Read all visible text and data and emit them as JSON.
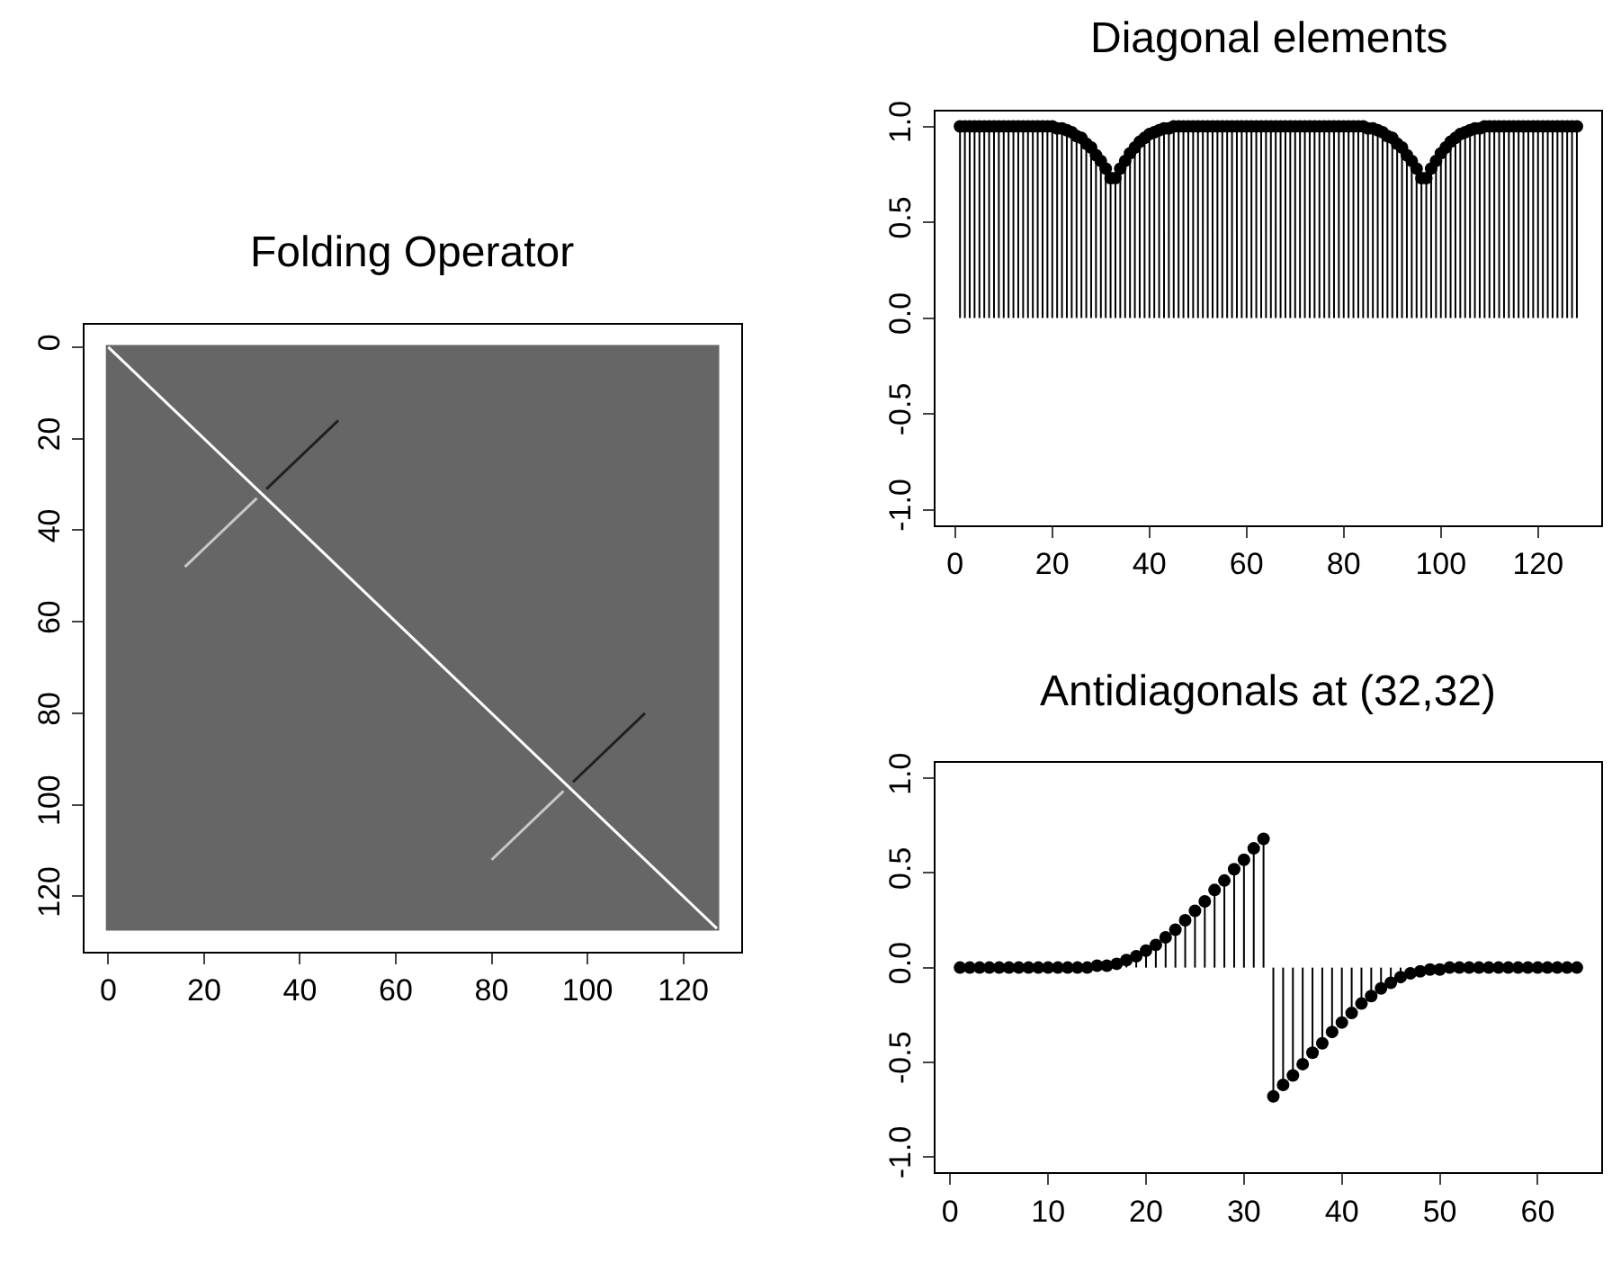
{
  "chart_data": [
    {
      "type": "line",
      "title": "Folding Operator",
      "marker": "none",
      "line_style": "solid",
      "grid": false,
      "xlim": [
        -5,
        132
      ],
      "ylim": [
        132,
        -5
      ],
      "xticks": [
        0,
        20,
        40,
        60,
        80,
        100,
        120
      ],
      "yticks": [
        0,
        20,
        40,
        60,
        80,
        100,
        120
      ],
      "bands": [
        {
          "axis": "x",
          "from": -0.5,
          "to": 127.5,
          "color": "#666666"
        }
      ],
      "series": [
        {
          "color": "#ffffff",
          "x": [
            0,
            127
          ],
          "values": [
            0,
            127
          ]
        },
        {
          "color": "#c8c8c8",
          "x": [
            16,
            31
          ],
          "values": [
            48,
            33
          ]
        },
        {
          "color": "#202020",
          "x": [
            33,
            48
          ],
          "values": [
            31,
            16
          ]
        },
        {
          "color": "#c8c8c8",
          "x": [
            80,
            95
          ],
          "values": [
            112,
            97
          ]
        },
        {
          "color": "#202020",
          "x": [
            97,
            112
          ],
          "values": [
            95,
            80
          ]
        }
      ]
    },
    {
      "type": "lollipop",
      "title": "Diagonal elements",
      "marker": "circle",
      "grid": false,
      "xlim": [
        -4.08,
        133.08
      ],
      "ylim": [
        -1.08,
        1.08
      ],
      "xticks": [
        0,
        20,
        40,
        60,
        80,
        100,
        120
      ],
      "yticks": [
        {
          "value": -1,
          "label": "-1.0"
        },
        {
          "value": -0.5,
          "label": "-0.5"
        },
        {
          "value": 0,
          "label": "0.0"
        },
        {
          "value": 0.5,
          "label": "0.5"
        },
        {
          "value": 1,
          "label": "1.0"
        }
      ],
      "series": [
        {
          "color": "#000000",
          "x": [
            1,
            2,
            3,
            4,
            5,
            6,
            7,
            8,
            9,
            10,
            11,
            12,
            13,
            14,
            15,
            16,
            17,
            18,
            19,
            20,
            21,
            22,
            23,
            24,
            25,
            26,
            27,
            28,
            29,
            30,
            31,
            32,
            33,
            34,
            35,
            36,
            37,
            38,
            39,
            40,
            41,
            42,
            43,
            44,
            45,
            46,
            47,
            48,
            49,
            50,
            51,
            52,
            53,
            54,
            55,
            56,
            57,
            58,
            59,
            60,
            61,
            62,
            63,
            64,
            65,
            66,
            67,
            68,
            69,
            70,
            71,
            72,
            73,
            74,
            75,
            76,
            77,
            78,
            79,
            80,
            81,
            82,
            83,
            84,
            85,
            86,
            87,
            88,
            89,
            90,
            91,
            92,
            93,
            94,
            95,
            96,
            97,
            98,
            99,
            100,
            101,
            102,
            103,
            104,
            105,
            106,
            107,
            108,
            109,
            110,
            111,
            112,
            113,
            114,
            115,
            116,
            117,
            118,
            119,
            120,
            121,
            122,
            123,
            124,
            125,
            126,
            127,
            128
          ],
          "values": [
            1,
            1,
            1,
            1,
            1,
            1,
            1,
            1,
            1,
            1,
            1,
            1,
            1,
            1,
            1,
            1,
            1,
            1,
            1,
            1,
            0.99,
            0.99,
            0.98,
            0.97,
            0.95,
            0.94,
            0.91,
            0.89,
            0.85,
            0.82,
            0.78,
            0.73,
            0.73,
            0.78,
            0.82,
            0.86,
            0.89,
            0.92,
            0.94,
            0.96,
            0.97,
            0.98,
            0.99,
            0.99,
            1,
            1,
            1,
            1,
            1,
            1,
            1,
            1,
            1,
            1,
            1,
            1,
            1,
            1,
            1,
            1,
            1,
            1,
            1,
            1,
            1,
            1,
            1,
            1,
            1,
            1,
            1,
            1,
            1,
            1,
            1,
            1,
            1,
            1,
            1,
            1,
            1,
            1,
            1,
            1,
            0.99,
            0.99,
            0.98,
            0.97,
            0.95,
            0.94,
            0.91,
            0.89,
            0.85,
            0.82,
            0.78,
            0.73,
            0.73,
            0.78,
            0.82,
            0.86,
            0.89,
            0.92,
            0.94,
            0.96,
            0.97,
            0.98,
            0.99,
            0.99,
            1,
            1,
            1,
            1,
            1,
            1,
            1,
            1,
            1,
            1,
            1,
            1,
            1,
            1,
            1,
            1,
            1,
            1,
            1,
            1
          ]
        }
      ]
    },
    {
      "type": "lollipop",
      "title": "Antidiagonals at (32,32)",
      "marker": "circle",
      "grid": false,
      "xlim": [
        -1.52,
        66.52
      ],
      "ylim": [
        -1.08,
        1.08
      ],
      "xticks": [
        0,
        10,
        20,
        30,
        40,
        50,
        60
      ],
      "yticks": [
        {
          "value": -1,
          "label": "-1.0"
        },
        {
          "value": -0.5,
          "label": "-0.5"
        },
        {
          "value": 0,
          "label": "0.0"
        },
        {
          "value": 0.5,
          "label": "0.5"
        },
        {
          "value": 1,
          "label": "1.0"
        }
      ],
      "series": [
        {
          "color": "#000000",
          "x": [
            1,
            2,
            3,
            4,
            5,
            6,
            7,
            8,
            9,
            10,
            11,
            12,
            13,
            14,
            15,
            16,
            17,
            18,
            19,
            20,
            21,
            22,
            23,
            24,
            25,
            26,
            27,
            28,
            29,
            30,
            31,
            32,
            33,
            34,
            35,
            36,
            37,
            38,
            39,
            40,
            41,
            42,
            43,
            44,
            45,
            46,
            47,
            48,
            49,
            50,
            51,
            52,
            53,
            54,
            55,
            56,
            57,
            58,
            59,
            60,
            61,
            62,
            63,
            64
          ],
          "values": [
            0,
            0,
            0,
            0,
            0,
            0,
            0,
            0,
            0,
            0,
            0,
            0,
            0,
            0,
            0.01,
            0.01,
            0.02,
            0.04,
            0.06,
            0.09,
            0.12,
            0.16,
            0.2,
            0.25,
            0.3,
            0.35,
            0.41,
            0.46,
            0.52,
            0.57,
            0.63,
            0.68,
            -0.68,
            -0.62,
            -0.57,
            -0.51,
            -0.45,
            -0.4,
            -0.34,
            -0.29,
            -0.24,
            -0.19,
            -0.15,
            -0.11,
            -0.08,
            -0.05,
            -0.03,
            -0.02,
            -0.01,
            -0.01,
            0,
            0,
            0,
            0,
            0,
            0,
            0,
            0,
            0,
            0,
            0,
            0,
            0,
            0
          ]
        }
      ]
    }
  ]
}
